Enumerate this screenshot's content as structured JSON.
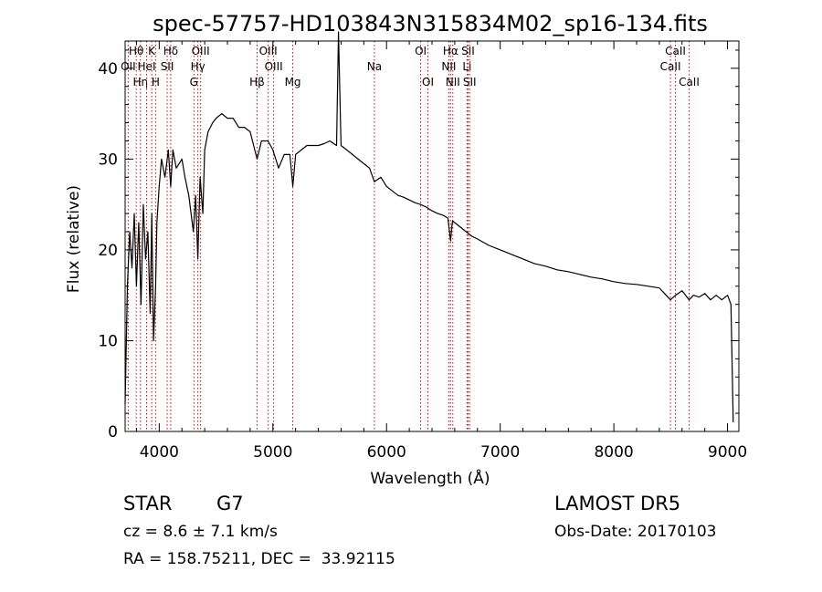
{
  "chart_data": {
    "type": "line",
    "title": "spec-57757-HD103843N315834M02_sp16-134.fits",
    "xlabel": "Wavelength (Å)",
    "ylabel": "Flux (relative)",
    "xlim": [
      3700,
      9100
    ],
    "ylim": [
      0,
      43
    ],
    "x_ticks": [
      4000,
      5000,
      6000,
      7000,
      8000,
      9000
    ],
    "y_ticks": [
      0,
      10,
      20,
      30,
      40
    ],
    "grid": false,
    "series": [
      {
        "x": [
          3700,
          3720,
          3740,
          3760,
          3780,
          3800,
          3820,
          3840,
          3860,
          3880,
          3900,
          3920,
          3935,
          3950,
          3968,
          3980,
          4000,
          4020,
          4050,
          4080,
          4101,
          4120,
          4150,
          4200,
          4226,
          4260,
          4300,
          4320,
          4340,
          4360,
          4384,
          4400,
          4430,
          4470,
          4500,
          4550,
          4600,
          4650,
          4700,
          4750,
          4800,
          4861,
          4900,
          4957,
          5000,
          5050,
          5100,
          5150,
          5175,
          5200,
          5250,
          5300,
          5350,
          5400,
          5450,
          5500,
          5560,
          5577,
          5600,
          5650,
          5700,
          5750,
          5800,
          5850,
          5893,
          5950,
          6000,
          6050,
          6100,
          6150,
          6200,
          6250,
          6300,
          6350,
          6400,
          6450,
          6500,
          6540,
          6563,
          6580,
          6600,
          6650,
          6700,
          6750,
          6800,
          6900,
          7000,
          7100,
          7200,
          7300,
          7400,
          7500,
          7600,
          7700,
          7800,
          7900,
          8000,
          8100,
          8200,
          8300,
          8400,
          8498,
          8542,
          8600,
          8662,
          8700,
          8750,
          8800,
          8850,
          8900,
          8950,
          9000,
          9030,
          9050
        ],
        "y": [
          3,
          16,
          22,
          18,
          24,
          16,
          23,
          14,
          25,
          19,
          22,
          13,
          24,
          10,
          16,
          23,
          27,
          30,
          28,
          31,
          27,
          31,
          29,
          30,
          28,
          26,
          22,
          26,
          19,
          28,
          24,
          31,
          33,
          34,
          34.5,
          35,
          34.5,
          34.5,
          33.5,
          33.5,
          33,
          30,
          32,
          32,
          31,
          29,
          30.5,
          30.5,
          27,
          30.5,
          31,
          31.5,
          31.5,
          31.5,
          31.7,
          32,
          31.5,
          44,
          31.5,
          31,
          30.5,
          30,
          29.5,
          29,
          27.5,
          28,
          27,
          26.5,
          26,
          25.8,
          25.5,
          25.2,
          25,
          24.7,
          24.3,
          24,
          23.8,
          23.5,
          21,
          23.2,
          23,
          22.5,
          22,
          21.5,
          21.2,
          20.5,
          20,
          19.5,
          19,
          18.5,
          18.2,
          17.8,
          17.6,
          17.3,
          17,
          16.8,
          16.5,
          16.3,
          16.2,
          16,
          15.8,
          14.5,
          15,
          15.5,
          14.5,
          15,
          14.8,
          15.2,
          14.5,
          15,
          14.5,
          15,
          14,
          1
        ]
      }
    ],
    "line_markers": [
      {
        "label": "OII",
        "wavelength": 3727,
        "row": 1
      },
      {
        "label": "Hθ",
        "wavelength": 3798,
        "row": 0
      },
      {
        "label": "Hη",
        "wavelength": 3835,
        "row": 2
      },
      {
        "label": "HeI",
        "wavelength": 3889,
        "row": 1
      },
      {
        "label": "K",
        "wavelength": 3934,
        "row": 0
      },
      {
        "label": "H",
        "wavelength": 3968,
        "row": 2
      },
      {
        "label": "Hδ",
        "wavelength": 4101,
        "row": 0
      },
      {
        "label": "SII",
        "wavelength": 4070,
        "row": 1
      },
      {
        "label": "G",
        "wavelength": 4305,
        "row": 2
      },
      {
        "label": "OIII",
        "wavelength": 4364,
        "row": 0
      },
      {
        "label": "Hγ",
        "wavelength": 4340,
        "row": 1
      },
      {
        "label": "Hβ",
        "wavelength": 4861,
        "row": 2
      },
      {
        "label": "OIII",
        "wavelength": 4959,
        "row": 0
      },
      {
        "label": "OIII",
        "wavelength": 5007,
        "row": 1
      },
      {
        "label": "Mg",
        "wavelength": 5175,
        "row": 2
      },
      {
        "label": "Na",
        "wavelength": 5893,
        "row": 1
      },
      {
        "label": "OI",
        "wavelength": 6300,
        "row": 0
      },
      {
        "label": "OI",
        "wavelength": 6364,
        "row": 2
      },
      {
        "label": "NII",
        "wavelength": 6548,
        "row": 1
      },
      {
        "label": "Hα",
        "wavelength": 6563,
        "row": 0
      },
      {
        "label": "NII",
        "wavelength": 6583,
        "row": 2
      },
      {
        "label": "Li",
        "wavelength": 6708,
        "row": 1
      },
      {
        "label": "SII",
        "wavelength": 6717,
        "row": 0
      },
      {
        "label": "SII",
        "wavelength": 6731,
        "row": 2
      },
      {
        "label": "CaII",
        "wavelength": 8498,
        "row": 1
      },
      {
        "label": "CaII",
        "wavelength": 8542,
        "row": 0
      },
      {
        "label": "CaII",
        "wavelength": 8662,
        "row": 2
      }
    ]
  },
  "info": {
    "object_type": "STAR",
    "subclass": "G7",
    "survey": "LAMOST DR5",
    "redshift": "cz = 8.6 ± 7.1 km/s",
    "obs_date": "Obs-Date: 20170103",
    "coords": "RA = 158.75211, DEC =  33.92115"
  }
}
